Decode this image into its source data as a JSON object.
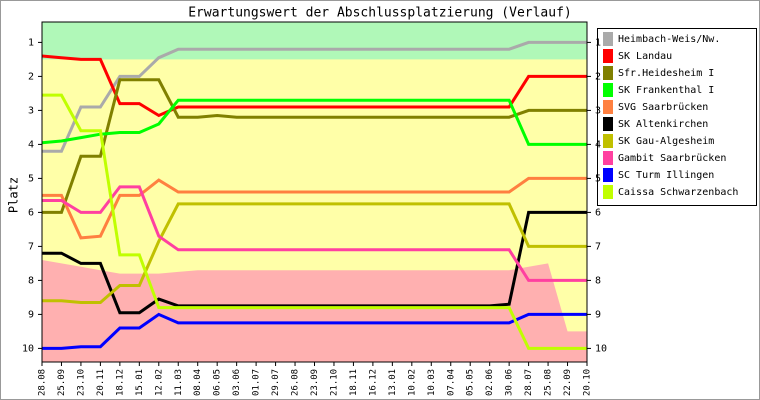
{
  "chart_data": {
    "type": "line",
    "title": "Erwartungswert der Abschlussplatzierung (Verlauf)",
    "ylabel": "Platz",
    "categories": [
      "28.08",
      "25.09",
      "23.10",
      "20.11",
      "18.12",
      "15.01",
      "12.02",
      "11.03",
      "08.04",
      "06.05",
      "03.06",
      "01.07",
      "29.07",
      "26.08",
      "23.09",
      "21.10",
      "18.11",
      "16.12",
      "13.01",
      "10.02",
      "10.03",
      "07.04",
      "05.05",
      "02.06",
      "30.06",
      "28.07",
      "25.08",
      "22.09",
      "20.10"
    ],
    "ylim": [
      10.4,
      0.4
    ],
    "yticks": [
      1,
      2,
      3,
      4,
      5,
      6,
      7,
      8,
      9,
      10
    ],
    "zones": {
      "green": "#b0f8b8",
      "yellow": "#ffffa8",
      "red": "#ffb0b0",
      "green_to": 1.5,
      "red_from": [
        7.4,
        7.5,
        7.6,
        7.7,
        7.8,
        7.8,
        7.8,
        7.75,
        7.7,
        7.7,
        7.7,
        7.7,
        7.7,
        7.7,
        7.7,
        7.7,
        7.7,
        7.7,
        7.7,
        7.7,
        7.7,
        7.7,
        7.7,
        7.7,
        7.7,
        7.6,
        7.5,
        9.5,
        9.5
      ]
    },
    "series": [
      {
        "name": "Heimbach-Weis/Nw.",
        "color": "#aaaaaa",
        "values": [
          4.2,
          4.2,
          2.9,
          2.9,
          2.0,
          2.0,
          1.45,
          1.2,
          1.2,
          1.2,
          1.2,
          1.2,
          1.2,
          1.2,
          1.2,
          1.2,
          1.2,
          1.2,
          1.2,
          1.2,
          1.2,
          1.2,
          1.2,
          1.2,
          1.2,
          1.0,
          1.0,
          1.0,
          1.0
        ]
      },
      {
        "name": "SK Landau",
        "color": "#ff0000",
        "values": [
          1.4,
          1.45,
          1.5,
          1.5,
          2.8,
          2.8,
          3.15,
          2.9,
          2.9,
          2.9,
          2.9,
          2.9,
          2.9,
          2.9,
          2.9,
          2.9,
          2.9,
          2.9,
          2.9,
          2.9,
          2.9,
          2.9,
          2.9,
          2.9,
          2.9,
          2.0,
          2.0,
          2.0,
          2.0
        ]
      },
      {
        "name": "Sfr.Heidesheim I",
        "color": "#808000",
        "values": [
          6.0,
          6.0,
          4.35,
          4.35,
          2.1,
          2.1,
          2.1,
          3.2,
          3.2,
          3.15,
          3.2,
          3.2,
          3.2,
          3.2,
          3.2,
          3.2,
          3.2,
          3.2,
          3.2,
          3.2,
          3.2,
          3.2,
          3.2,
          3.2,
          3.2,
          3.0,
          3.0,
          3.0,
          3.0
        ]
      },
      {
        "name": "SK Frankenthal I",
        "color": "#00ff00",
        "values": [
          3.95,
          3.9,
          3.8,
          3.7,
          3.65,
          3.65,
          3.4,
          2.7,
          2.7,
          2.7,
          2.7,
          2.7,
          2.7,
          2.7,
          2.7,
          2.7,
          2.7,
          2.7,
          2.7,
          2.7,
          2.7,
          2.7,
          2.7,
          2.7,
          2.7,
          4.0,
          4.0,
          4.0,
          4.0
        ]
      },
      {
        "name": "SVG Saarbrücken",
        "color": "#ff8040",
        "values": [
          5.5,
          5.5,
          6.75,
          6.7,
          5.5,
          5.5,
          5.05,
          5.4,
          5.4,
          5.4,
          5.4,
          5.4,
          5.4,
          5.4,
          5.4,
          5.4,
          5.4,
          5.4,
          5.4,
          5.4,
          5.4,
          5.4,
          5.4,
          5.4,
          5.4,
          5.0,
          5.0,
          5.0,
          5.0
        ]
      },
      {
        "name": "SK Altenkirchen",
        "color": "#000000",
        "values": [
          7.2,
          7.2,
          7.5,
          7.5,
          8.95,
          8.95,
          8.55,
          8.75,
          8.75,
          8.75,
          8.75,
          8.75,
          8.75,
          8.75,
          8.75,
          8.75,
          8.75,
          8.75,
          8.75,
          8.75,
          8.75,
          8.75,
          8.75,
          8.75,
          8.7,
          6.0,
          6.0,
          6.0,
          6.0
        ]
      },
      {
        "name": "SK Gau-Algesheim",
        "color": "#c0c000",
        "values": [
          8.6,
          8.6,
          8.65,
          8.65,
          8.15,
          8.15,
          6.85,
          5.75,
          5.75,
          5.75,
          5.75,
          5.75,
          5.75,
          5.75,
          5.75,
          5.75,
          5.75,
          5.75,
          5.75,
          5.75,
          5.75,
          5.75,
          5.75,
          5.75,
          5.75,
          7.0,
          7.0,
          7.0,
          7.0
        ]
      },
      {
        "name": "Gambit Saarbrücken",
        "color": "#ff40a0",
        "values": [
          5.65,
          5.65,
          6.0,
          6.0,
          5.25,
          5.25,
          6.7,
          7.1,
          7.1,
          7.1,
          7.1,
          7.1,
          7.1,
          7.1,
          7.1,
          7.1,
          7.1,
          7.1,
          7.1,
          7.1,
          7.1,
          7.1,
          7.1,
          7.1,
          7.1,
          8.0,
          8.0,
          8.0,
          8.0
        ]
      },
      {
        "name": "SC Turm Illingen",
        "color": "#0000ff",
        "values": [
          10.0,
          10.0,
          9.95,
          9.95,
          9.4,
          9.4,
          9.0,
          9.25,
          9.25,
          9.25,
          9.25,
          9.25,
          9.25,
          9.25,
          9.25,
          9.25,
          9.25,
          9.25,
          9.25,
          9.25,
          9.25,
          9.25,
          9.25,
          9.25,
          9.25,
          9.0,
          9.0,
          9.0,
          9.0
        ]
      },
      {
        "name": "Caissa Schwarzenbach",
        "color": "#c0ff00",
        "values": [
          2.55,
          2.55,
          3.6,
          3.6,
          7.25,
          7.25,
          8.8,
          8.8,
          8.8,
          8.8,
          8.8,
          8.8,
          8.8,
          8.8,
          8.8,
          8.8,
          8.8,
          8.8,
          8.8,
          8.8,
          8.8,
          8.8,
          8.8,
          8.8,
          8.8,
          10.0,
          10.0,
          10.0,
          10.0
        ]
      }
    ]
  }
}
